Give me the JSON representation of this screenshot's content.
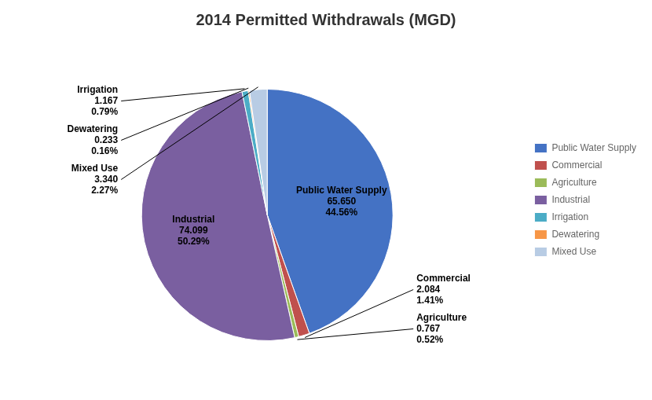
{
  "chart_data": {
    "type": "pie",
    "title": "2014 Permitted Withdrawals (MGD)",
    "categories": [
      "Public Water Supply",
      "Commercial",
      "Agriculture",
      "Industrial",
      "Irrigation",
      "Dewatering",
      "Mixed Use"
    ],
    "values": [
      65.65,
      2.084,
      0.767,
      74.099,
      1.167,
      0.233,
      3.34
    ],
    "value_labels": [
      "65.650",
      "2.084",
      "0.767",
      "74.099",
      "1.167",
      "0.233",
      "3.340"
    ],
    "percentages": [
      44.56,
      1.41,
      0.52,
      50.29,
      0.79,
      0.16,
      2.27
    ],
    "percentage_labels": [
      "44.56%",
      "1.41%",
      "0.52%",
      "50.29%",
      "0.79%",
      "0.16%",
      "2.27%"
    ],
    "colors": [
      "#4472C4",
      "#C0504D",
      "#9BBB59",
      "#7A5FA0",
      "#4BACC6",
      "#F79646",
      "#B8CCE4"
    ],
    "legend": "right",
    "data_labels": true
  }
}
